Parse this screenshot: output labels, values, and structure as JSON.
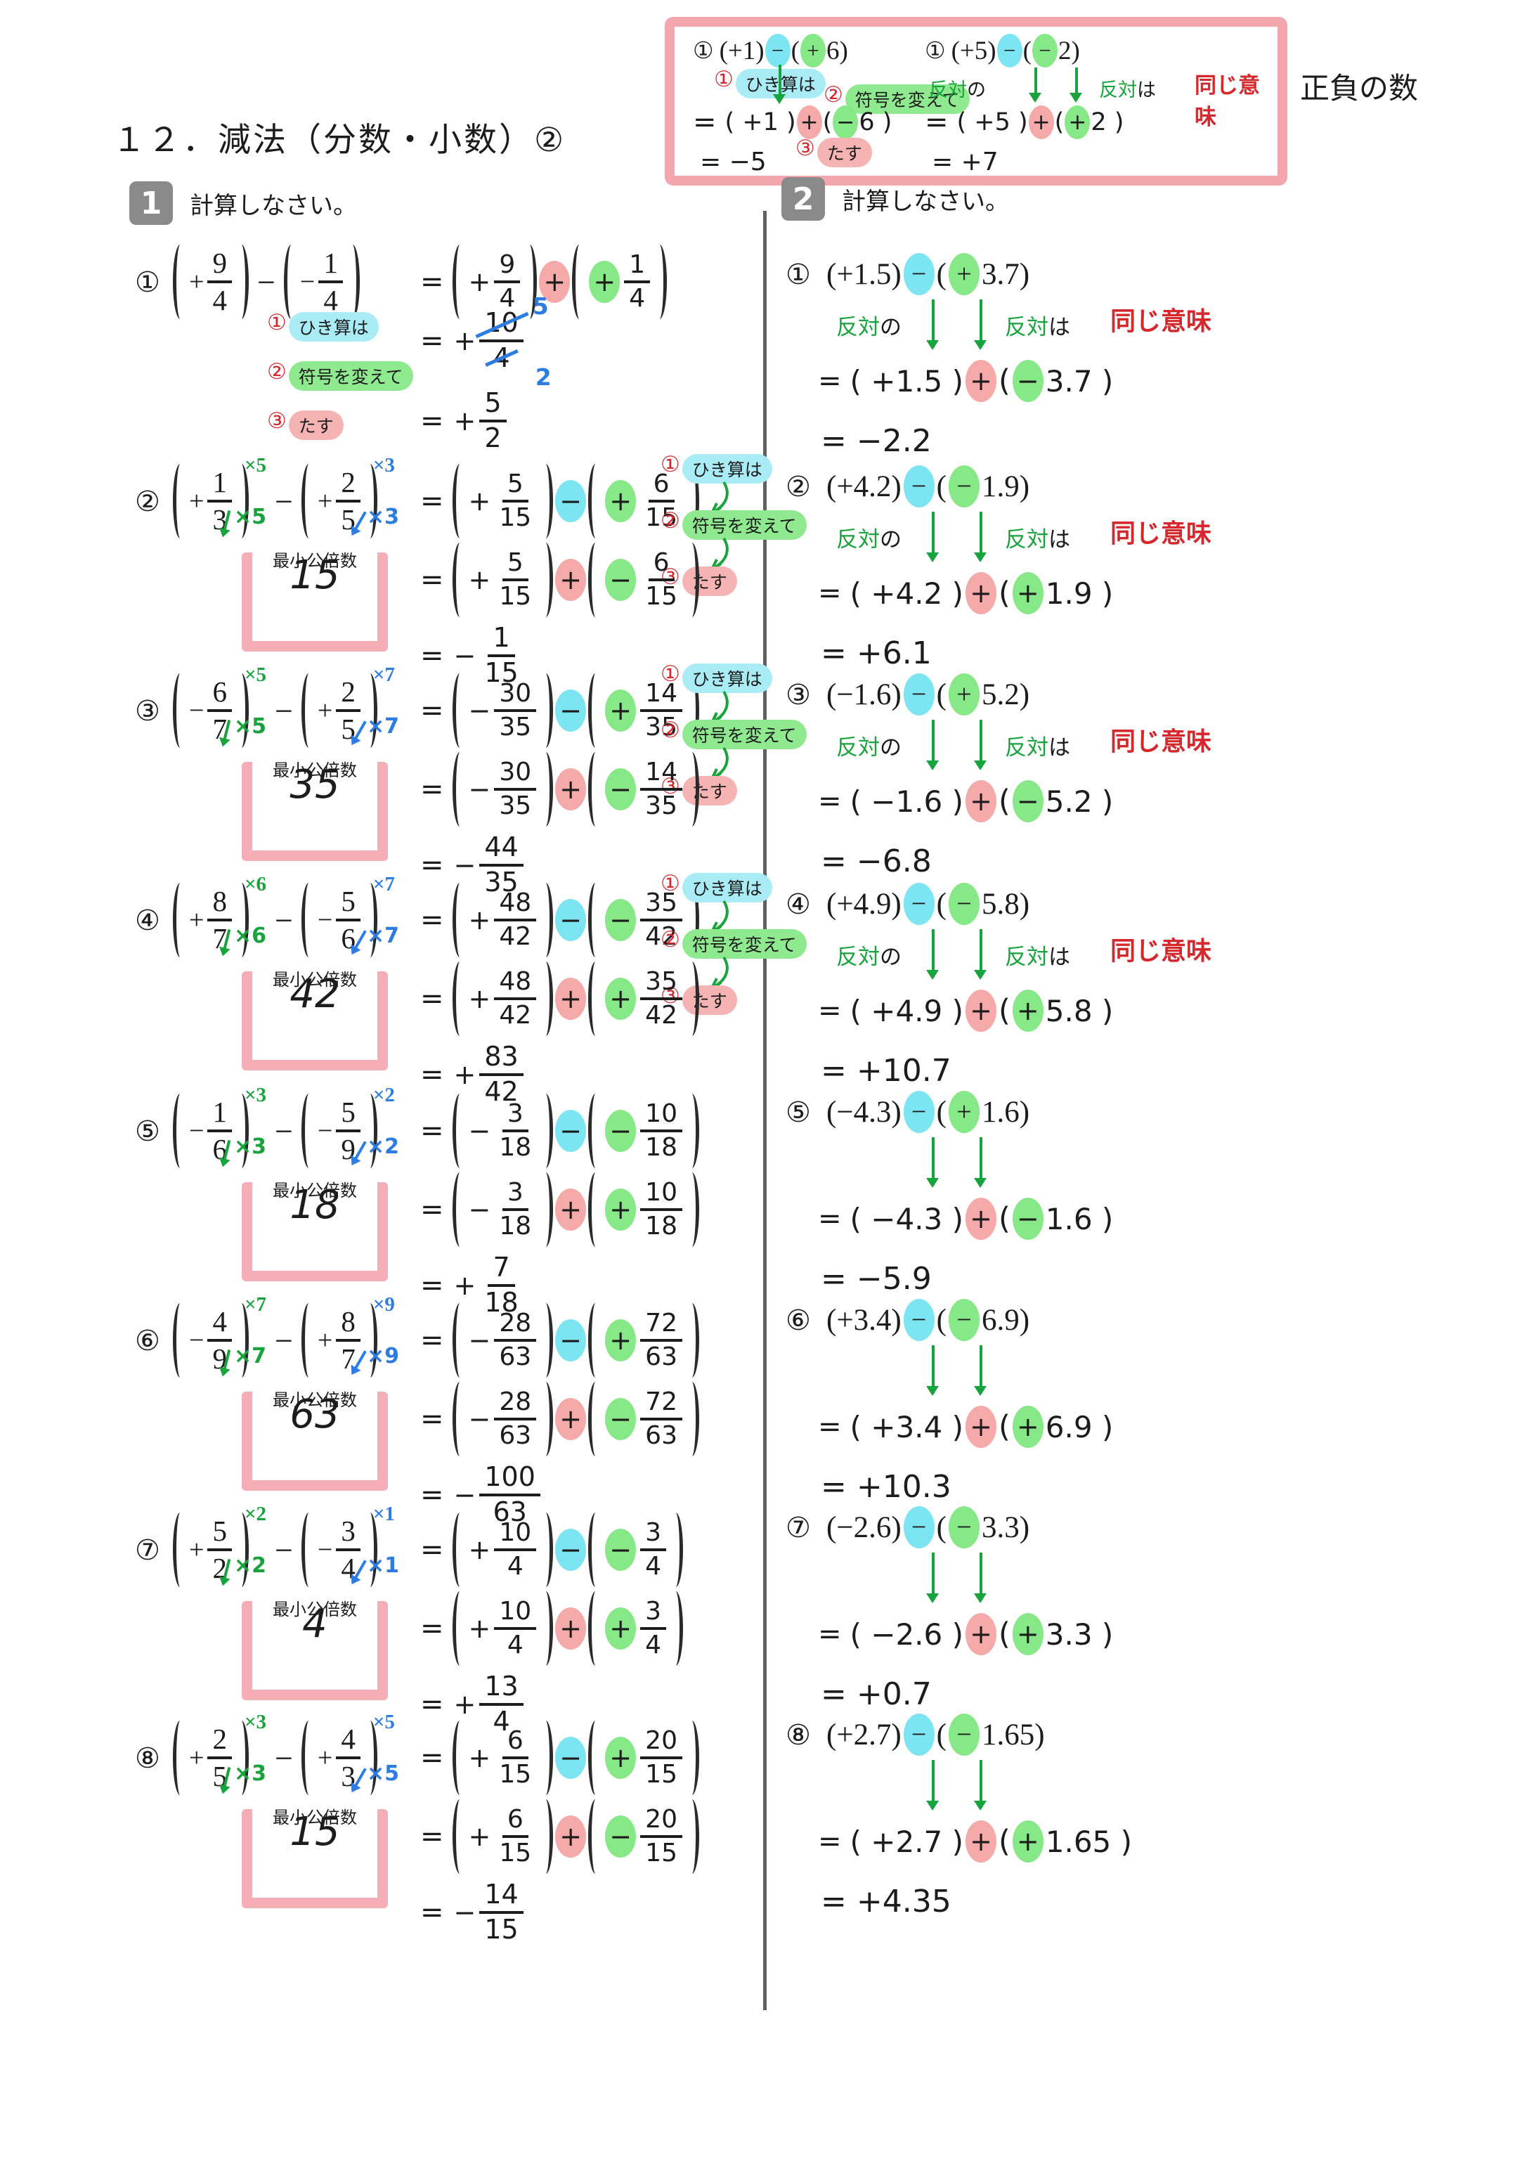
{
  "page": {
    "title": "１２．減法（分数・小数）②",
    "side_label": "正負の数"
  },
  "colors": {
    "minus_highlight": "#7de4f2",
    "sign_highlight": "#86e886",
    "plus_highlight": "#f5a9a9",
    "box_border": "#f3a6ae",
    "section_badge": "#8a8a8a",
    "red_ink": "#d4282c",
    "green_ink": "#18a33c",
    "blue_ink": "#2c7ce2"
  },
  "steps_legend": {
    "s1_no": "①",
    "s1_text": "ひき算は",
    "s2_no": "②",
    "s2_text": "符号を変えて",
    "s3_no": "③",
    "s3_text": "たす",
    "lcm_label": "最小公倍数",
    "opp_g1": "反対",
    "opp_k1": "の",
    "opp_g2": "反対",
    "opp_k2": "は",
    "same_meaning": "同じ意味"
  },
  "example_box": {
    "left": {
      "label": "①",
      "head_a": "(+1)",
      "head_op": "−",
      "head_b_open": "(",
      "head_b_sign": "+",
      "head_b_rest": "6)",
      "mid_eq": "=",
      "mid_a": "( +1 )",
      "mid_op": "+",
      "mid_b_open": "(",
      "mid_b_sign": "−",
      "mid_b_rest": " 6 )",
      "result": "= −5"
    },
    "right": {
      "label": "①",
      "head_a": "(+5)",
      "head_op": "−",
      "head_b_open": "(",
      "head_b_sign": "−",
      "head_b_rest": "2)",
      "mid_eq": "=",
      "mid_a": "( +5 )",
      "mid_op": "+",
      "mid_b_open": "(",
      "mid_b_sign": "+",
      "mid_b_rest": "2 )",
      "result": "= +7"
    }
  },
  "section1": {
    "no": "1",
    "instruction": "計算しなさい。",
    "problems": [
      {
        "label": "①",
        "a_sign": "+",
        "a_num": "9",
        "a_den": "4",
        "op": "−",
        "b_sign": "−",
        "b_num": "1",
        "b_den": "4",
        "r1_eq": "=",
        "ca_sign": "+",
        "ca_num": "9",
        "ca_den": "4",
        "r1_op": "+",
        "r1_op_color": "pink",
        "cb_sign": "+",
        "cb_num": "1",
        "cb_den": "4",
        "notes": "below",
        "reduce_eq": "=",
        "reduce_sign": "+",
        "reduce_num": "10",
        "reduce_den": "4",
        "reduce_num_to": "5",
        "reduce_den_to": "2",
        "res_eq": "=",
        "res_sign": "+",
        "res_num": "5",
        "res_den": "2"
      },
      {
        "label": "②",
        "a_sign": "+",
        "a_num": "1",
        "a_den": "3",
        "a_mult": "×5",
        "op": "−",
        "b_sign": "+",
        "b_num": "2",
        "b_den": "5",
        "b_mult": "×3",
        "lcm": "15",
        "r1_eq": "=",
        "ca_sign": "+",
        "ca_num": "5",
        "ca_den": "15",
        "r1_op": "−",
        "r1_op_color": "cyan",
        "cb_sign": "+",
        "cb_num": "6",
        "cb_den": "15",
        "r2_eq": "=",
        "r2_op": "+",
        "ab_sign": "−",
        "notes": "right",
        "res_eq": "=",
        "res_sign": "−",
        "res_num": "1",
        "res_den": "15"
      },
      {
        "label": "③",
        "a_sign": "−",
        "a_num": "6",
        "a_den": "7",
        "a_mult": "×5",
        "op": "−",
        "b_sign": "+",
        "b_num": "2",
        "b_den": "5",
        "b_mult": "×7",
        "lcm": "35",
        "r1_eq": "=",
        "ca_sign": "−",
        "ca_num": "30",
        "ca_den": "35",
        "r1_op": "−",
        "r1_op_color": "cyan",
        "cb_sign": "+",
        "cb_num": "14",
        "cb_den": "35",
        "r2_eq": "=",
        "r2_op": "+",
        "ab_sign": "−",
        "notes": "right",
        "res_eq": "=",
        "res_sign": "−",
        "res_num": "44",
        "res_den": "35"
      },
      {
        "label": "④",
        "a_sign": "+",
        "a_num": "8",
        "a_den": "7",
        "a_mult": "×6",
        "op": "−",
        "b_sign": "−",
        "b_num": "5",
        "b_den": "6",
        "b_mult": "×7",
        "lcm": "42",
        "r1_eq": "=",
        "ca_sign": "+",
        "ca_num": "48",
        "ca_den": "42",
        "r1_op": "−",
        "r1_op_color": "cyan",
        "cb_sign": "−",
        "cb_num": "35",
        "cb_den": "42",
        "r2_eq": "=",
        "r2_op": "+",
        "ab_sign": "+",
        "notes": "right",
        "res_eq": "=",
        "res_sign": "+",
        "res_num": "83",
        "res_den": "42"
      },
      {
        "label": "⑤",
        "a_sign": "−",
        "a_num": "1",
        "a_den": "6",
        "a_mult": "×3",
        "op": "−",
        "b_sign": "−",
        "b_num": "5",
        "b_den": "9",
        "b_mult": "×2",
        "lcm": "18",
        "r1_eq": "=",
        "ca_sign": "−",
        "ca_num": "3",
        "ca_den": "18",
        "r1_op": "−",
        "r1_op_color": "cyan",
        "cb_sign": "−",
        "cb_num": "10",
        "cb_den": "18",
        "r2_eq": "=",
        "r2_op": "+",
        "ab_sign": "+",
        "notes": "none",
        "res_eq": "=",
        "res_sign": "+",
        "res_num": "7",
        "res_den": "18"
      },
      {
        "label": "⑥",
        "a_sign": "−",
        "a_num": "4",
        "a_den": "9",
        "a_mult": "×7",
        "op": "−",
        "b_sign": "+",
        "b_num": "8",
        "b_den": "7",
        "b_mult": "×9",
        "lcm": "63",
        "r1_eq": "=",
        "ca_sign": "−",
        "ca_num": "28",
        "ca_den": "63",
        "r1_op": "−",
        "r1_op_color": "cyan",
        "cb_sign": "+",
        "cb_num": "72",
        "cb_den": "63",
        "r2_eq": "=",
        "r2_op": "+",
        "ab_sign": "−",
        "notes": "none",
        "res_eq": "=",
        "res_sign": "−",
        "res_num": "100",
        "res_den": "63"
      },
      {
        "label": "⑦",
        "a_sign": "+",
        "a_num": "5",
        "a_den": "2",
        "a_mult": "×2",
        "op": "−",
        "b_sign": "−",
        "b_num": "3",
        "b_den": "4",
        "b_mult": "×1",
        "lcm": "4",
        "r1_eq": "=",
        "ca_sign": "+",
        "ca_num": "10",
        "ca_den": "4",
        "r1_op": "−",
        "r1_op_color": "cyan",
        "cb_sign": "−",
        "cb_num": "3",
        "cb_den": "4",
        "r2_eq": "=",
        "r2_op": "+",
        "ab_sign": "+",
        "notes": "none",
        "res_eq": "=",
        "res_sign": "+",
        "res_num": "13",
        "res_den": "4"
      },
      {
        "label": "⑧",
        "a_sign": "+",
        "a_num": "2",
        "a_den": "5",
        "a_mult": "×3",
        "op": "−",
        "b_sign": "+",
        "b_num": "4",
        "b_den": "3",
        "b_mult": "×5",
        "lcm": "15",
        "r1_eq": "=",
        "ca_sign": "+",
        "ca_num": "6",
        "ca_den": "15",
        "r1_op": "−",
        "r1_op_color": "cyan",
        "cb_sign": "+",
        "cb_num": "20",
        "cb_den": "15",
        "r2_eq": "=",
        "r2_op": "+",
        "ab_sign": "−",
        "notes": "none",
        "res_eq": "=",
        "res_sign": "−",
        "res_num": "14",
        "res_den": "15"
      }
    ]
  },
  "section2": {
    "no": "2",
    "instruction": "計算しなさい。",
    "problems": [
      {
        "label": "①",
        "ha": "(+1.5)",
        "hop": "−",
        "hbo": "(",
        "hbs": "+",
        "hbr": "3.7)",
        "note": true,
        "meq": "=",
        "ma": "( +1.5 )",
        "mop": "+",
        "mbo": "(",
        "mbs": "−",
        "mbr": " 3.7 )",
        "result": "= −2.2"
      },
      {
        "label": "②",
        "ha": "(+4.2)",
        "hop": "−",
        "hbo": "(",
        "hbs": "−",
        "hbr": "1.9)",
        "note": true,
        "meq": "=",
        "ma": "( +4.2 )",
        "mop": "+",
        "mbo": "(",
        "mbs": "+",
        "mbr": " 1.9 )",
        "result": "= +6.1"
      },
      {
        "label": "③",
        "ha": "(−1.6)",
        "hop": "−",
        "hbo": "(",
        "hbs": "+",
        "hbr": "5.2)",
        "note": true,
        "meq": "=",
        "ma": "( −1.6 )",
        "mop": "+",
        "mbo": "(",
        "mbs": "−",
        "mbr": " 5.2 )",
        "result": "= −6.8"
      },
      {
        "label": "④",
        "ha": "(+4.9)",
        "hop": "−",
        "hbo": "(",
        "hbs": "−",
        "hbr": "5.8)",
        "note": true,
        "meq": "=",
        "ma": "( +4.9 )",
        "mop": "+",
        "mbo": "(",
        "mbs": "+",
        "mbr": " 5.8 )",
        "result": "= +10.7"
      },
      {
        "label": "⑤",
        "ha": "(−4.3)",
        "hop": "−",
        "hbo": "(",
        "hbs": "+",
        "hbr": "1.6)",
        "note": false,
        "meq": "=",
        "ma": "( −4.3 )",
        "mop": "+",
        "mbo": "(",
        "mbs": "−",
        "mbr": " 1.6 )",
        "result": "= −5.9"
      },
      {
        "label": "⑥",
        "ha": "(+3.4)",
        "hop": "−",
        "hbo": "(",
        "hbs": "−",
        "hbr": "6.9)",
        "note": false,
        "meq": "=",
        "ma": "( +3.4 )",
        "mop": "+",
        "mbo": "(",
        "mbs": "+",
        "mbr": " 6.9 )",
        "result": "= +10.3"
      },
      {
        "label": "⑦",
        "ha": "(−2.6)",
        "hop": "−",
        "hbo": "(",
        "hbs": "−",
        "hbr": "3.3)",
        "note": false,
        "meq": "=",
        "ma": "( −2.6 )",
        "mop": "+",
        "mbo": "(",
        "mbs": "+",
        "mbr": " 3.3 )",
        "result": "= +0.7"
      },
      {
        "label": "⑧",
        "ha": "(+2.7)",
        "hop": "−",
        "hbo": "(",
        "hbs": "−",
        "hbr": "1.65)",
        "note": false,
        "meq": "=",
        "ma": "( +2.7 )",
        "mop": "+",
        "mbo": "(",
        "mbs": "+",
        "mbr": " 1.65 )",
        "result": "= +4.35"
      }
    ]
  }
}
